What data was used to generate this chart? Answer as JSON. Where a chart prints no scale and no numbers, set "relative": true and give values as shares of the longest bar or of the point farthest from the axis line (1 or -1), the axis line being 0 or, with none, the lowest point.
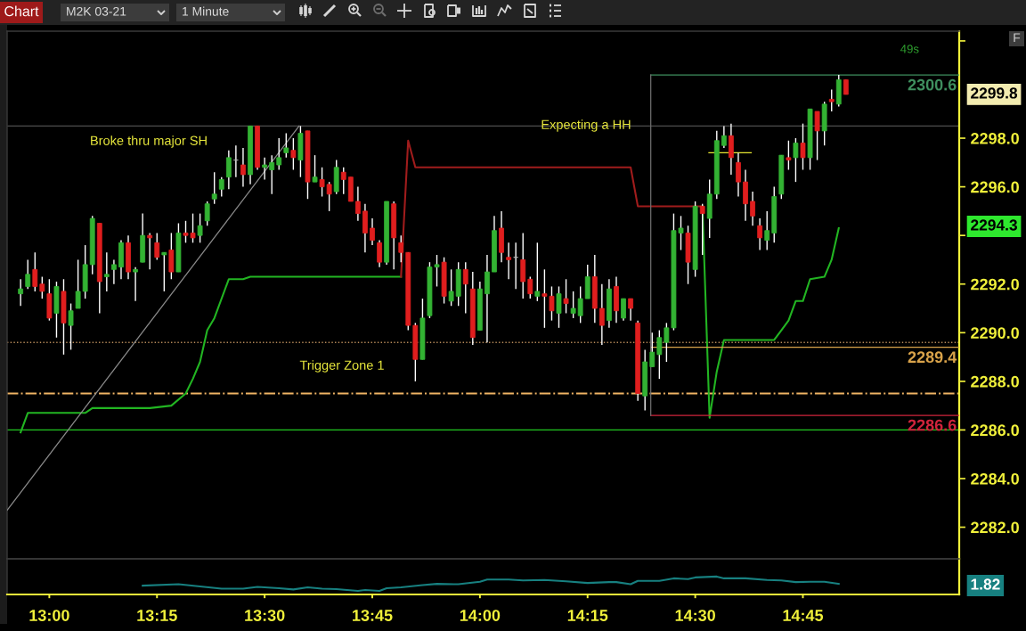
{
  "chart_data": [
    {
      "type": "candlestick",
      "title": "M2K 03-21",
      "subtitle": "1 Minute",
      "annotations": [
        "Chart",
        "49s",
        "F",
        "Broke thru major SH",
        "Expecting a HH",
        "Trigger Zone 1",
        "2294.3"
      ],
      "x": [
        12.9333,
        12.95,
        12.9667,
        12.9833,
        13,
        13.0167,
        13.0333,
        13.05,
        13.0667,
        13.0833,
        13.1,
        13.1167,
        13.1333,
        13.15,
        13.1667,
        13.1833,
        13.2,
        13.2167,
        13.2333,
        13.25,
        13.2667,
        13.2833,
        13.3,
        13.3167,
        13.3333,
        13.35,
        13.3667,
        13.3833,
        13.4,
        13.4167,
        13.4333,
        13.45,
        13.4667,
        13.4833,
        13.5,
        13.5167,
        13.5333,
        13.55,
        13.5667,
        13.5833,
        13.6,
        13.6167,
        13.6333,
        13.65,
        13.6667,
        13.6833,
        13.7,
        13.7167,
        13.7333,
        13.75,
        13.7667,
        13.7833,
        13.8,
        13.8167,
        13.8333,
        13.85,
        13.8667,
        13.8833,
        13.9,
        13.9167,
        13.9333,
        13.95,
        13.9667,
        13.9833,
        14,
        14.0167,
        14.0333,
        14.05,
        14.0667,
        14.0833,
        14.1,
        14.1167,
        14.1333,
        14.15,
        14.1667,
        14.1833,
        14.2,
        14.2167,
        14.2333,
        14.25,
        14.2667,
        14.2833,
        14.3,
        14.3167,
        14.3333,
        14.35,
        14.3667,
        14.3833,
        14.4,
        14.4167,
        14.4333,
        14.45,
        14.4667,
        14.4833,
        14.5,
        14.5167,
        14.5333,
        14.55,
        14.5667,
        14.5833,
        14.6,
        14.6167,
        14.6333,
        14.65,
        14.6667,
        14.6833,
        14.7,
        14.7167,
        14.7333,
        14.75,
        14.7667,
        14.7833,
        14.8,
        14.8167,
        14.8333,
        14.85
      ],
      "ohlc": [
        [
          2291.6,
          2292.2,
          2291.1,
          2291.8
        ],
        [
          2291.9,
          2293.0,
          2291.8,
          2292.4
        ],
        [
          2292.6,
          2293.3,
          2291.7,
          2291.9
        ],
        [
          2292.0,
          2292.3,
          2291.4,
          2291.7
        ],
        [
          2291.6,
          2292.2,
          2290.5,
          2290.6
        ],
        [
          2290.8,
          2292.1,
          2289.8,
          2291.9
        ],
        [
          2291.7,
          2292.2,
          2289.1,
          2290.4
        ],
        [
          2290.3,
          2291.2,
          2289.3,
          2290.9
        ],
        [
          2291.0,
          2293.0,
          2291.0,
          2291.7
        ],
        [
          2291.7,
          2293.6,
          2291.4,
          2292.8
        ],
        [
          2292.8,
          2294.8,
          2292.4,
          2294.7
        ],
        [
          2294.5,
          2294.5,
          2290.8,
          2292.1
        ],
        [
          2292.3,
          2293.3,
          2291.7,
          2292.4
        ],
        [
          2292.6,
          2293.0,
          2292.0,
          2292.8
        ],
        [
          2292.7,
          2293.8,
          2292.2,
          2293.7
        ],
        [
          2293.7,
          2294.0,
          2292.2,
          2292.5
        ],
        [
          2292.5,
          2292.7,
          2291.3,
          2292.6
        ],
        [
          2292.9,
          2294.9,
          2292.9,
          2294.0
        ],
        [
          2294.0,
          2294.1,
          2292.6,
          2293.9
        ],
        [
          2293.7,
          2294.1,
          2293.0,
          2293.1
        ],
        [
          2293.2,
          2293.3,
          2291.7,
          2293.3
        ],
        [
          2293.4,
          2294.1,
          2292.2,
          2292.5
        ],
        [
          2292.5,
          2294.5,
          2292.5,
          2294.1
        ],
        [
          2294.1,
          2294.6,
          2293.7,
          2294.0
        ],
        [
          2294.1,
          2294.9,
          2293.7,
          2293.9
        ],
        [
          2294.0,
          2294.9,
          2293.7,
          2294.4
        ],
        [
          2294.6,
          2295.4,
          2294.4,
          2295.3
        ],
        [
          2295.5,
          2296.6,
          2295.3,
          2295.7
        ],
        [
          2295.9,
          2296.4,
          2295.6,
          2296.3
        ],
        [
          2296.4,
          2297.5,
          2295.9,
          2297.2
        ],
        [
          2297.1,
          2297.7,
          2296.4,
          2297.1
        ],
        [
          2296.9,
          2297.6,
          2296.0,
          2296.5
        ],
        [
          2296.5,
          2298.5,
          2296.1,
          2298.5
        ],
        [
          2298.5,
          2298.5,
          2296.7,
          2296.8
        ],
        [
          2296.8,
          2297.2,
          2296.3,
          2296.9
        ],
        [
          2296.7,
          2297.3,
          2295.7,
          2297.0
        ],
        [
          2296.9,
          2298.0,
          2296.7,
          2297.2
        ],
        [
          2297.4,
          2298.2,
          2297.2,
          2297.6
        ],
        [
          2297.5,
          2298.0,
          2296.7,
          2297.2
        ],
        [
          2297.1,
          2298.5,
          2296.4,
          2298.2
        ],
        [
          2298.3,
          2298.3,
          2295.5,
          2296.2
        ],
        [
          2296.2,
          2297.3,
          2296.2,
          2296.4
        ],
        [
          2296.3,
          2296.8,
          2295.6,
          2296.0
        ],
        [
          2296.1,
          2296.2,
          2295.0,
          2295.7
        ],
        [
          2295.8,
          2297.1,
          2295.7,
          2296.8
        ],
        [
          2296.6,
          2296.8,
          2295.7,
          2296.3
        ],
        [
          2296.4,
          2296.4,
          2295.4,
          2295.4
        ],
        [
          2295.4,
          2296.0,
          2294.6,
          2294.9
        ],
        [
          2295.0,
          2295.3,
          2293.3,
          2294.1
        ],
        [
          2294.3,
          2294.7,
          2293.6,
          2293.8
        ],
        [
          2293.7,
          2293.8,
          2292.7,
          2292.9
        ],
        [
          2292.9,
          2295.4,
          2292.8,
          2295.4
        ],
        [
          2295.3,
          2295.4,
          2292.6,
          2293.9
        ],
        [
          2293.7,
          2294.0,
          2292.9,
          2293.3
        ],
        [
          2293.3,
          2293.3,
          2290.1,
          2290.3
        ],
        [
          2290.3,
          2290.4,
          2288.0,
          2288.9
        ],
        [
          2288.9,
          2291.4,
          2288.9,
          2290.6
        ],
        [
          2290.7,
          2292.9,
          2290.6,
          2292.7
        ],
        [
          2292.7,
          2293.2,
          2291.9,
          2292.8
        ],
        [
          2292.9,
          2293.1,
          2291.2,
          2291.5
        ],
        [
          2291.3,
          2292.6,
          2291.1,
          2291.7
        ],
        [
          2291.5,
          2292.9,
          2291.1,
          2292.6
        ],
        [
          2292.6,
          2292.9,
          2290.8,
          2292.0
        ],
        [
          2291.8,
          2292.5,
          2289.5,
          2289.8
        ],
        [
          2290.1,
          2292.1,
          2290.1,
          2291.8
        ],
        [
          2291.6,
          2293.2,
          2289.6,
          2292.5
        ],
        [
          2292.5,
          2294.8,
          2292.5,
          2294.2
        ],
        [
          2294.3,
          2295.0,
          2292.9,
          2293.3
        ],
        [
          2293.1,
          2293.7,
          2292.2,
          2293.0
        ],
        [
          2293.1,
          2293.7,
          2291.8,
          2293.1
        ],
        [
          2293.0,
          2294.1,
          2291.4,
          2292.1
        ],
        [
          2292.2,
          2292.3,
          2291.4,
          2291.6
        ],
        [
          2291.5,
          2293.7,
          2291.3,
          2291.7
        ],
        [
          2291.6,
          2292.6,
          2290.2,
          2291.5
        ],
        [
          2291.5,
          2291.9,
          2290.5,
          2290.9
        ],
        [
          2290.8,
          2291.9,
          2290.2,
          2291.6
        ],
        [
          2291.4,
          2292.2,
          2290.8,
          2291.2
        ],
        [
          2290.8,
          2291.7,
          2290.6,
          2291.0
        ],
        [
          2290.7,
          2291.9,
          2290.4,
          2291.4
        ],
        [
          2291.4,
          2292.8,
          2291.4,
          2292.3
        ],
        [
          2292.3,
          2293.2,
          2290.4,
          2291.0
        ],
        [
          2291.0,
          2292.0,
          2289.5,
          2290.3
        ],
        [
          2290.5,
          2292.2,
          2290.2,
          2291.8
        ],
        [
          2291.9,
          2292.3,
          2290.4,
          2290.9
        ],
        [
          2290.6,
          2291.4,
          2290.5,
          2291.4
        ],
        [
          2291.4,
          2291.4,
          2290.5,
          2291.0
        ],
        [
          2290.4,
          2290.5,
          2287.2,
          2287.5
        ],
        [
          2287.4,
          2289.3,
          2286.8,
          2288.8
        ],
        [
          2288.6,
          2290.0,
          2288.6,
          2289.2
        ],
        [
          2289.1,
          2290.1,
          2288.1,
          2289.8
        ],
        [
          2289.6,
          2290.4,
          2288.8,
          2290.2
        ],
        [
          2290.2,
          2294.9,
          2290.1,
          2294.2
        ],
        [
          2294.1,
          2294.8,
          2293.4,
          2294.3
        ],
        [
          2294.1,
          2294.4,
          2292.0,
          2292.9
        ],
        [
          2292.6,
          2295.4,
          2292.3,
          2295.2
        ],
        [
          2295.2,
          2295.3,
          2293.2,
          2294.9
        ],
        [
          2294.7,
          2296.3,
          2293.9,
          2295.7
        ],
        [
          2295.7,
          2298.3,
          2295.5,
          2297.9
        ],
        [
          2297.7,
          2298.5,
          2297.6,
          2298.1
        ],
        [
          2298.1,
          2298.6,
          2296.5,
          2297.2
        ],
        [
          2297.0,
          2297.4,
          2295.6,
          2296.2
        ],
        [
          2296.2,
          2296.7,
          2294.6,
          2295.3
        ],
        [
          2295.4,
          2295.8,
          2294.4,
          2294.8
        ],
        [
          2294.4,
          2294.7,
          2293.4,
          2293.9
        ],
        [
          2293.8,
          2295.0,
          2293.4,
          2294.2
        ],
        [
          2294.1,
          2296.0,
          2293.7,
          2295.6
        ],
        [
          2295.7,
          2297.3,
          2295.5,
          2297.3
        ],
        [
          2297.2,
          2297.9,
          2296.7,
          2297.1
        ],
        [
          2297.2,
          2298.0,
          2296.2,
          2297.8
        ],
        [
          2297.8,
          2298.6,
          2296.7,
          2297.2
        ],
        [
          2297.2,
          2299.2,
          2296.7,
          2299.2
        ],
        [
          2299.1,
          2299.1,
          2297.1,
          2298.3
        ],
        [
          2298.3,
          2299.5,
          2297.7,
          2299.4
        ],
        [
          2299.6,
          2300.0,
          2299.1,
          2299.5
        ],
        [
          2299.4,
          2300.6,
          2299.3,
          2300.4
        ],
        [
          2300.4,
          2300.4,
          2299.8,
          2299.8
        ]
      ],
      "colors": [
        "#33b233",
        "#33b233",
        "#e01e1e",
        "#e01e1e",
        "#e01e1e",
        "#33b233",
        "#e01e1e",
        "#33b233",
        "#33b233",
        "#33b233",
        "#33b233",
        "#e01e1e",
        "#33b233",
        "#33b233",
        "#33b233",
        "#e01e1e",
        "#33b233",
        "#33b233",
        "#e01e1e",
        "#e01e1e",
        "#33b233",
        "#e01e1e",
        "#33b233",
        "#e01e1e",
        "#e01e1e",
        "#33b233",
        "#33b233",
        "#33b233",
        "#33b233",
        "#33b233",
        "#b4b4b4",
        "#e01e1e",
        "#33b233",
        "#e01e1e",
        "#33b233",
        "#33b233",
        "#33b233",
        "#33b233",
        "#e01e1e",
        "#33b233",
        "#e01e1e",
        "#33b233",
        "#e01e1e",
        "#e01e1e",
        "#33b233",
        "#e01e1e",
        "#e01e1e",
        "#e01e1e",
        "#e01e1e",
        "#e01e1e",
        "#e01e1e",
        "#33b233",
        "#e01e1e",
        "#e01e1e",
        "#e01e1e",
        "#e01e1e",
        "#33b233",
        "#33b233",
        "#33b233",
        "#e01e1e",
        "#33b233",
        "#33b233",
        "#e01e1e",
        "#e01e1e",
        "#33b233",
        "#33b233",
        "#33b233",
        "#e01e1e",
        "#e01e1e",
        "#b4b4b4",
        "#e01e1e",
        "#e01e1e",
        "#33b233",
        "#e01e1e",
        "#e01e1e",
        "#33b233",
        "#e01e1e",
        "#33b233",
        "#33b233",
        "#33b233",
        "#e01e1e",
        "#e01e1e",
        "#33b233",
        "#e01e1e",
        "#33b233",
        "#e01e1e",
        "#e01e1e",
        "#33b233",
        "#33b233",
        "#33b233",
        "#33b233",
        "#33b233",
        "#33b233",
        "#e01e1e",
        "#33b233",
        "#e01e1e",
        "#33b233",
        "#33b233",
        "#33b233",
        "#e01e1e",
        "#e01e1e",
        "#e01e1e",
        "#e01e1e",
        "#e01e1e",
        "#33b233",
        "#33b233",
        "#33b233",
        "#e01e1e",
        "#33b233",
        "#e01e1e",
        "#33b233",
        "#e01e1e",
        "#33b233",
        "#e01e1e",
        "#33b233",
        "#e01e1e"
      ],
      "value_labels": [
        null,
        null,
        null,
        null,
        null,
        null,
        null,
        null,
        null,
        null,
        null,
        null,
        null,
        null,
        null,
        null,
        null,
        null,
        null,
        null,
        null,
        null,
        null,
        null,
        null,
        null,
        null,
        null,
        null,
        null,
        null,
        null,
        null,
        null,
        null,
        null,
        null,
        null,
        null,
        null,
        null,
        null,
        null,
        null,
        null,
        null,
        null,
        null,
        null,
        null,
        null,
        null,
        null,
        null,
        null,
        null,
        null,
        null,
        null,
        null,
        null,
        null,
        null,
        null,
        null,
        null,
        null,
        null,
        null,
        null,
        null,
        null,
        null,
        null,
        null,
        null,
        null,
        null,
        null,
        null,
        null,
        null,
        null,
        null,
        null,
        null,
        null,
        null,
        null,
        null,
        null,
        null,
        null,
        null,
        null,
        null,
        null,
        null,
        null,
        null,
        null,
        null,
        null,
        null,
        null,
        null,
        null,
        null,
        null,
        null,
        null,
        null,
        null,
        null,
        null,
        "2299.8"
      ],
      "series": [
        {
          "type": "line",
          "color": "#22b522",
          "x": [
            12.9333,
            12.95,
            13.0833,
            13.1,
            13.2333,
            13.2833,
            13.3167,
            13.3333,
            13.35,
            13.3667,
            13.3833,
            13.4167,
            13.45,
            13.4667,
            13.8167
          ],
          "values": [
            2285.9,
            2286.7,
            2286.7,
            2286.9,
            2286.9,
            2287.0,
            2287.5,
            2288.1,
            2288.8,
            2290.1,
            2290.6,
            2292.2,
            2292.2,
            2292.3,
            2292.3
          ]
        },
        {
          "type": "line",
          "color": "#a01c1c",
          "x": [
            13.8167,
            13.8333,
            13.85,
            14.35,
            14.3667,
            14.5167
          ],
          "values": [
            2292.3,
            2297.9,
            2296.8,
            2296.8,
            2295.2,
            2295.2
          ]
        },
        {
          "type": "line",
          "color": "#22b522",
          "x": [
            14.5167,
            14.5333,
            14.55,
            14.5667,
            14.6833,
            14.7,
            14.7167,
            14.7333,
            14.75,
            14.7667,
            14.8,
            14.8167,
            14.8333
          ],
          "values": [
            2295.2,
            2286.5,
            2288.4,
            2289.7,
            2289.7,
            2290.1,
            2290.5,
            2291.3,
            2291.3,
            2292.2,
            2292.3,
            2293.0,
            2294.3
          ]
        },
        {
          "type": "line",
          "color": "#8c8c8c",
          "x": [
            12.9022,
            13.58
          ],
          "values": [
            2282.7,
            2298.5
          ]
        },
        {
          "type": "line",
          "color": "#3f8f5f",
          "x": [
            14.3967,
            15.113
          ],
          "values": [
            2300.6,
            2300.6
          ],
          "value_labels": [
            null,
            "2300.6"
          ]
        },
        {
          "type": "line",
          "color": "#d9a34a",
          "x": [
            14.3967,
            15.113
          ],
          "values": [
            2289.4,
            2289.4
          ],
          "value_labels": [
            null,
            "2289.4"
          ]
        },
        {
          "type": "line",
          "color": "#d0243c",
          "x": [
            14.3967,
            15.113
          ],
          "values": [
            2286.6,
            2286.6
          ],
          "value_labels": [
            null,
            "2286.6"
          ]
        },
        {
          "type": "line",
          "color": "#6e6e6e",
          "x": [
            14.3967,
            14.3967
          ],
          "values": [
            2286.6,
            2300.6
          ]
        },
        {
          "type": "line",
          "color": "#e6e632",
          "x": [
            14.5317,
            14.63
          ],
          "values": [
            2297.4,
            2297.4
          ]
        }
      ],
      "ref_lines": [
        {
          "axis": "y",
          "value": 2298.5,
          "color": "#4e4e4e"
        },
        {
          "axis": "y",
          "value": 2289.6,
          "color": "#b98c5a",
          "line_style": "dotted"
        },
        {
          "axis": "y",
          "value": 2287.5,
          "color": "#f0b464",
          "line_style": "dashdot"
        },
        {
          "axis": "y",
          "value": 2286.0,
          "color": "#22c822"
        }
      ],
      "xlim": [
        12.902,
        15.113
      ],
      "ylim": [
        2280.7,
        2302.4
      ],
      "yticks": [
        {
          "value": 2282,
          "label": "2282.0"
        },
        {
          "value": 2284,
          "label": "2284.0"
        },
        {
          "value": 2286,
          "label": "2286.0"
        },
        {
          "value": 2288,
          "label": "2288.0"
        },
        {
          "value": 2290,
          "label": "2290.0"
        },
        {
          "value": 2292,
          "label": "2292.0"
        },
        {
          "value": 2294,
          "label": null
        },
        {
          "value": 2296,
          "label": "2296.0"
        },
        {
          "value": 2298,
          "label": "2298.0"
        },
        {
          "value": 2302,
          "label": null
        }
      ],
      "tick_labels": "y"
    },
    {
      "type": "line",
      "relative": true,
      "annotations": [
        "1.82"
      ],
      "series": [
        {
          "type": "line",
          "color": "#178080",
          "x": [
            13.2167,
            13.3,
            13.35,
            13.4,
            13.45,
            13.4833,
            13.5333,
            13.5667,
            13.6,
            13.6333,
            13.6667,
            13.7167,
            13.7333,
            13.7667,
            13.7833,
            13.8167,
            13.8667,
            13.9,
            13.95,
            14,
            14.0167,
            14.0667,
            14.1,
            14.15,
            14.2,
            14.25,
            14.3,
            14.3167,
            14.35,
            14.3667,
            14.4167,
            14.45,
            14.4833,
            14.5,
            14.55,
            14.5667,
            14.6167,
            14.6667,
            14.7,
            14.7333,
            14.7667,
            14.8,
            14.8333
          ],
          "values": [
            0.49,
            0.57,
            0.45,
            0.32,
            0.32,
            0.42,
            0.35,
            0.28,
            0.4,
            0.32,
            0.3,
            0.2,
            0.25,
            0.2,
            0.35,
            0.4,
            0.52,
            0.59,
            0.57,
            0.71,
            0.83,
            0.83,
            0.78,
            0.81,
            0.73,
            0.64,
            0.69,
            0.69,
            0.57,
            0.76,
            0.76,
            0.9,
            0.86,
            0.95,
            1,
            0.9,
            0.9,
            0.81,
            0.78,
            0.69,
            0.71,
            0.71,
            0.59
          ]
        }
      ],
      "xlim": [
        12.902,
        15.113
      ],
      "xticks": [
        {
          "value": 13,
          "label": "13:00"
        },
        {
          "value": 13.25,
          "label": "13:15"
        },
        {
          "value": 13.5,
          "label": "13:30"
        },
        {
          "value": 13.75,
          "label": "13:45"
        },
        {
          "value": 14,
          "label": "14:00"
        },
        {
          "value": 14.25,
          "label": "14:15"
        },
        {
          "value": 14.5,
          "label": "14:30"
        },
        {
          "value": 14.75,
          "label": "14:45"
        }
      ],
      "tick_labels": "x"
    }
  ]
}
